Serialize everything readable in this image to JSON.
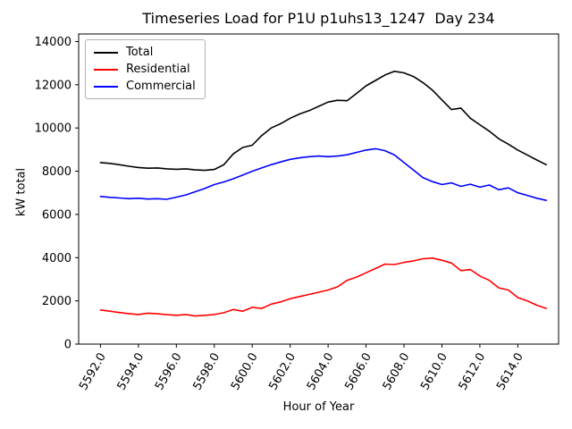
{
  "figure": {
    "title": "Timeseries Load for P1U p1uhs13_1247  Day 234"
  },
  "axes": {
    "xlabel": "Hour of Year",
    "ylabel": "kW total",
    "xtick_labels": [
      "5592.0",
      "5594.0",
      "5596.0",
      "5598.0",
      "5600.0",
      "5602.0",
      "5604.0",
      "5606.0",
      "5608.0",
      "5610.0",
      "5612.0",
      "5614.0"
    ],
    "ytick_labels": [
      "0",
      "2000",
      "4000",
      "6000",
      "8000",
      "10000",
      "12000",
      "14000"
    ]
  },
  "legend": {
    "entries": [
      {
        "label": "Total",
        "color": "#000000"
      },
      {
        "label": "Residential",
        "color": "#ff0000"
      },
      {
        "label": "Commercial",
        "color": "#0000ff"
      }
    ]
  },
  "chart_data": {
    "type": "line",
    "title": "Timeseries Load for P1U p1uhs13_1247  Day 234",
    "xlabel": "Hour of Year",
    "ylabel": "kW total",
    "grid": false,
    "legend_position": "upper left",
    "xlim": [
      5590.85,
      5616.15
    ],
    "ylim": [
      0,
      14350
    ],
    "xtick_values": [
      5592,
      5594,
      5596,
      5598,
      5600,
      5602,
      5604,
      5606,
      5608,
      5610,
      5612,
      5614
    ],
    "ytick_values": [
      0,
      2000,
      4000,
      6000,
      8000,
      10000,
      12000,
      14000
    ],
    "x": [
      5592,
      5592.5,
      5593,
      5593.5,
      5594,
      5594.5,
      5595,
      5595.5,
      5596,
      5596.5,
      5597,
      5597.5,
      5598,
      5598.5,
      5599,
      5599.5,
      5600,
      5600.5,
      5601,
      5601.5,
      5602,
      5602.5,
      5603,
      5603.5,
      5604,
      5604.5,
      5605,
      5605.5,
      5606,
      5606.5,
      5607,
      5607.5,
      5608,
      5608.5,
      5609,
      5609.5,
      5610,
      5610.5,
      5611,
      5611.5,
      5612,
      5612.5,
      5613,
      5613.5,
      5614,
      5614.5,
      5615,
      5615.5
    ],
    "series": [
      {
        "name": "Total",
        "color": "#000000",
        "values": [
          8400,
          8360,
          8300,
          8230,
          8170,
          8140,
          8150,
          8110,
          8090,
          8110,
          8060,
          8040,
          8080,
          8300,
          8800,
          9100,
          9200,
          9650,
          10000,
          10200,
          10450,
          10650,
          10800,
          11000,
          11200,
          11280,
          11260,
          11600,
          11950,
          12200,
          12450,
          12620,
          12550,
          12380,
          12100,
          11750,
          11300,
          10850,
          10920,
          10450,
          10150,
          9850,
          9500,
          9250,
          8980,
          8750,
          8520,
          8300
        ]
      },
      {
        "name": "Residential",
        "color": "#ff0000",
        "values": [
          1580,
          1520,
          1460,
          1410,
          1370,
          1430,
          1400,
          1360,
          1330,
          1370,
          1300,
          1330,
          1370,
          1450,
          1600,
          1520,
          1700,
          1650,
          1850,
          1950,
          2100,
          2200,
          2300,
          2400,
          2500,
          2650,
          2950,
          3100,
          3300,
          3500,
          3700,
          3680,
          3780,
          3850,
          3950,
          3980,
          3880,
          3750,
          3400,
          3450,
          3150,
          2950,
          2600,
          2500,
          2150,
          2000,
          1800,
          1650
        ]
      },
      {
        "name": "Commercial",
        "color": "#0000ff",
        "values": [
          6830,
          6790,
          6760,
          6730,
          6750,
          6710,
          6730,
          6700,
          6800,
          6900,
          7050,
          7200,
          7380,
          7500,
          7650,
          7820,
          8000,
          8150,
          8300,
          8430,
          8550,
          8620,
          8670,
          8700,
          8670,
          8700,
          8760,
          8870,
          8980,
          9040,
          8950,
          8750,
          8400,
          8050,
          7700,
          7520,
          7380,
          7460,
          7300,
          7400,
          7260,
          7360,
          7140,
          7230,
          7000,
          6880,
          6750,
          6650
        ]
      }
    ]
  }
}
